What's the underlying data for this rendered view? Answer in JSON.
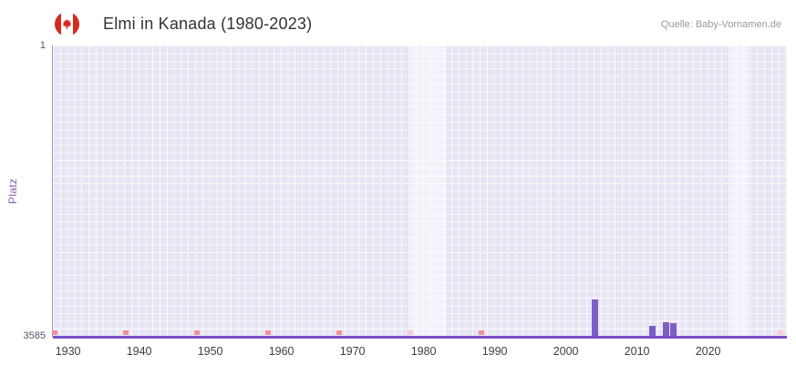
{
  "header": {
    "title": "Elmi in Kanada (1980-2023)",
    "source": "Quelle: Baby-Vornamen.de"
  },
  "chart_data": {
    "type": "bar",
    "title": "Elmi in Kanada (1980-2023)",
    "xlabel": "",
    "ylabel": "Platz",
    "y_axis": {
      "min": 1,
      "max": 3585,
      "top_tick": "1",
      "bottom_tick": "3585",
      "inverted": true
    },
    "x_axis": {
      "start_year": 1928,
      "end_year": 2031,
      "ticks": [
        "1930",
        "1940",
        "1950",
        "1960",
        "1970",
        "1980",
        "1990",
        "2000",
        "2010",
        "2020"
      ]
    },
    "series": [
      {
        "name": "Platz",
        "points": [
          {
            "year": 2004,
            "rank": 3130
          },
          {
            "year": 2012,
            "rank": 3450
          },
          {
            "year": 2014,
            "rank": 3400
          },
          {
            "year": 2015,
            "rank": 3420
          }
        ]
      }
    ],
    "bottom_markers": {
      "years": [
        1928,
        1938,
        1948,
        1958,
        1968,
        1978,
        1988,
        2030
      ],
      "light_years": [
        1978,
        2030
      ]
    },
    "highlight_bands": [
      {
        "from": 1978,
        "to": 1983
      },
      {
        "from": 2023,
        "to": 2025.5
      }
    ],
    "grid": true,
    "legend": false,
    "colors": {
      "bar": "#7e5ec6",
      "baseline": "#7a4fc8",
      "marker": "#ef8f97",
      "marker_light": "#f7c9d2",
      "plot_bg": "#e8e5f3",
      "band": "#f3f1fa",
      "grid": "#ffffff",
      "ylabel": "#8a5fb5",
      "tick_text": "#3d3d4a",
      "title_text": "#333333",
      "source_text": "#9a9a9a"
    }
  }
}
